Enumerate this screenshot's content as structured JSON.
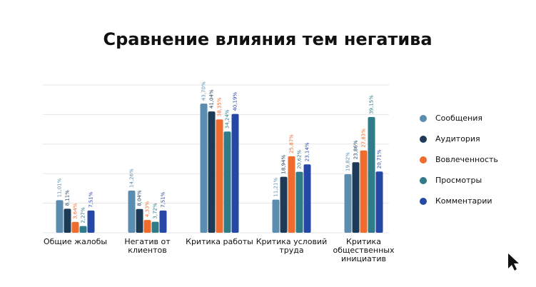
{
  "chart_data": {
    "type": "bar",
    "title": "Сравнение влияния тем негатива",
    "categories": [
      "Общие жалобы",
      "Негатив от клиентов",
      "Критика работы",
      "Критика условий труда",
      "Критика общественных инициатив"
    ],
    "series": [
      {
        "name": "Сообщения",
        "color": "#5b8db0",
        "values": [
          11.01,
          14.26,
          43.7,
          11.21,
          19.82
        ],
        "value_labels": [
          "11,01%",
          "14,26%",
          "43,70%",
          "11,21%",
          "19,82%"
        ]
      },
      {
        "name": "Аудитория",
        "color": "#1d3b57",
        "values": [
          8.11,
          8.04,
          41.04,
          18.94,
          23.86
        ],
        "value_labels": [
          "8,11%",
          "8,04%",
          "41,04%",
          "18,94%",
          "23,86%"
        ]
      },
      {
        "name": "Вовлеченность",
        "color": "#ef6c2e",
        "values": [
          3.64,
          4.33,
          38.35,
          25.87,
          27.83
        ],
        "value_labels": [
          "3,64%",
          "4,33%",
          "38,35%",
          "25,87%",
          "27,83%"
        ]
      },
      {
        "name": "Просмотры",
        "color": "#2f7b87",
        "values": [
          2.27,
          3.72,
          34.24,
          20.62,
          39.15
        ],
        "value_labels": [
          "2,27%",
          "3,72%",
          "34,24%",
          "20,62%",
          "39,15%"
        ]
      },
      {
        "name": "Комментарии",
        "color": "#2548a6",
        "values": [
          7.51,
          7.51,
          40.19,
          23.14,
          20.71
        ],
        "value_labels": [
          "7,51%",
          "7,51%",
          "40,19%",
          "23,14%",
          "20,71%"
        ]
      }
    ],
    "ylim": [
      0,
      50
    ],
    "yticks": [
      0,
      10,
      20,
      30,
      40,
      50
    ],
    "grid": true,
    "legend": "right"
  }
}
